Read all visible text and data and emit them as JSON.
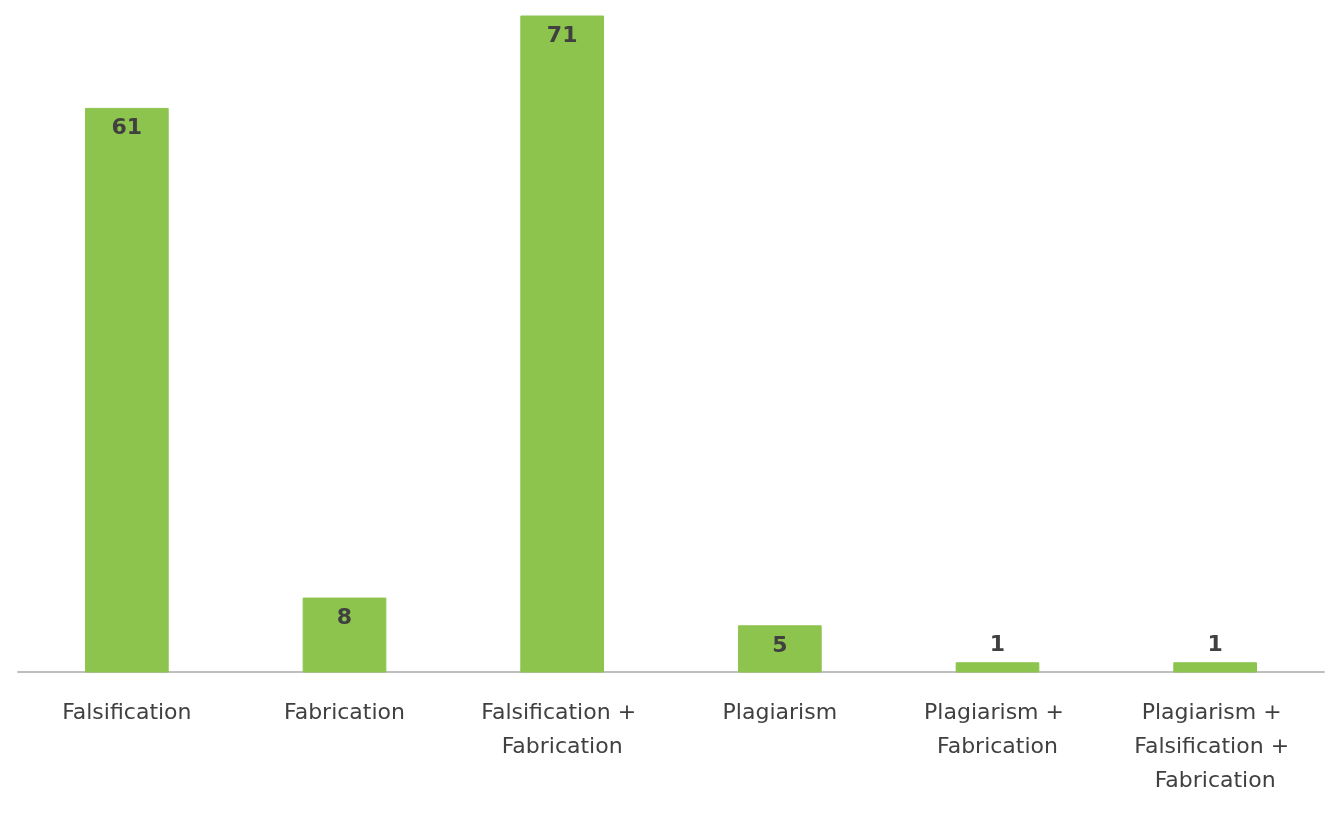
{
  "chart_data": {
    "type": "bar",
    "categories": [
      "Falsification",
      "Fabrication",
      "Falsification + Fabrication",
      "Plagiarism",
      "Plagiarism + Fabrication",
      "Plagiarism + Falsification + Fabrication"
    ],
    "values": [
      61,
      8,
      71,
      5,
      1,
      1
    ],
    "color": "#8dc44e",
    "data_labels": true
  }
}
